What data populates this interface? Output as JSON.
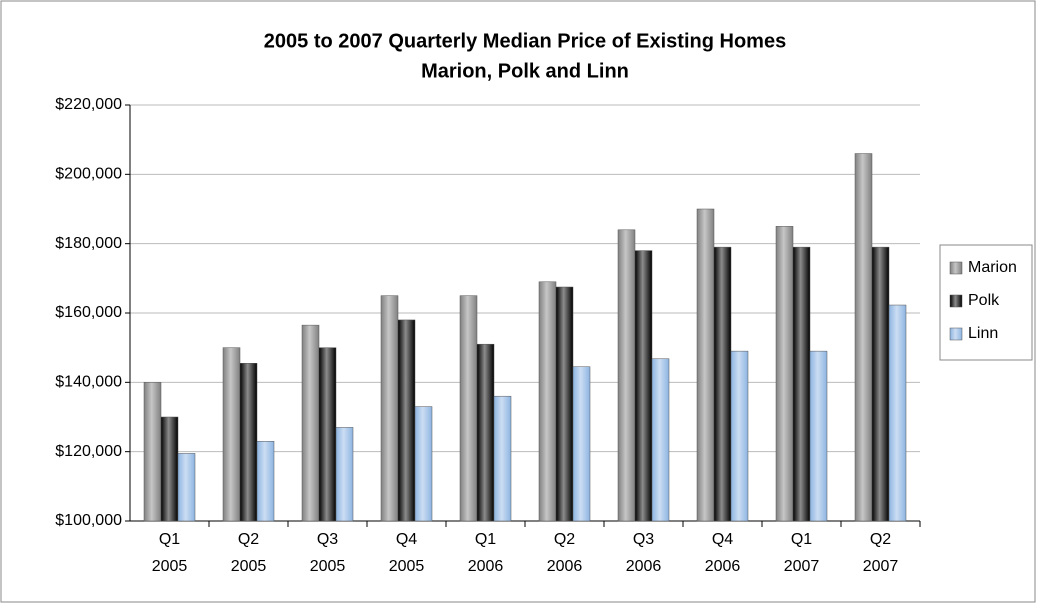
{
  "chart_data": {
    "type": "bar",
    "title": "2005 to 2007 Quarterly Median Price of Existing Homes",
    "subtitle": "Marion, Polk and Linn",
    "categories": [
      [
        "Q1",
        "2005"
      ],
      [
        "Q2",
        "2005"
      ],
      [
        "Q3",
        "2005"
      ],
      [
        "Q4",
        "2005"
      ],
      [
        "Q1",
        "2006"
      ],
      [
        "Q2",
        "2006"
      ],
      [
        "Q3",
        "2006"
      ],
      [
        "Q4",
        "2006"
      ],
      [
        "Q1",
        "2007"
      ],
      [
        "Q2",
        "2007"
      ]
    ],
    "series": [
      {
        "name": "Marion",
        "color": "#808080",
        "values": [
          140000,
          150000,
          156500,
          165000,
          165000,
          169000,
          184000,
          190000,
          185000,
          206000
        ]
      },
      {
        "name": "Polk",
        "color": "#000000",
        "values": [
          130000,
          145500,
          150000,
          158000,
          151000,
          167500,
          178000,
          179000,
          179000,
          179000
        ]
      },
      {
        "name": "Linn",
        "color": "#8db4e2",
        "values": [
          119500,
          123000,
          127000,
          133000,
          136000,
          144500,
          146800,
          149000,
          149000,
          162300
        ]
      }
    ],
    "ylim": [
      100000,
      220000
    ],
    "yticks": [
      {
        "value": 100000,
        "label": "$100,000"
      },
      {
        "value": 120000,
        "label": "$120,000"
      },
      {
        "value": 140000,
        "label": "$140,000"
      },
      {
        "value": 160000,
        "label": "$160,000"
      },
      {
        "value": 180000,
        "label": "$180,000"
      },
      {
        "value": 200000,
        "label": "$200,000"
      },
      {
        "value": 220000,
        "label": "$220,000"
      }
    ],
    "grid": true,
    "legend": "right"
  }
}
